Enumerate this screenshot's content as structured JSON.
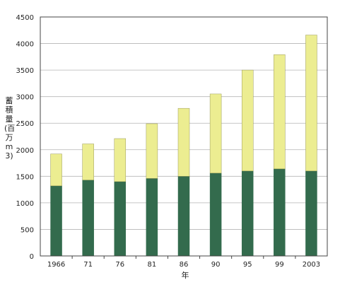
{
  "chart_data": {
    "type": "bar",
    "stacked": true,
    "categories": [
      "1966",
      "71",
      "76",
      "81",
      "86",
      "90",
      "95",
      "99",
      "2003"
    ],
    "series": [
      {
        "values": [
          1320,
          1430,
          1400,
          1460,
          1500,
          1560,
          1600,
          1640,
          1600
        ],
        "color": "#336b4d"
      },
      {
        "values": [
          600,
          680,
          810,
          1030,
          1280,
          1490,
          1900,
          2150,
          2560
        ],
        "color": "#eced91"
      }
    ],
    "totals": [
      1920,
      2110,
      2210,
      2490,
      2780,
      3050,
      3500,
      3790,
      4160
    ],
    "xlabel": "年",
    "ylabel": "蓄積量(百万m3)",
    "ylim": [
      0,
      4500
    ],
    "yticks": [
      0,
      500,
      1000,
      1500,
      2000,
      2500,
      3000,
      3500,
      4000,
      4500
    ],
    "grid": true,
    "colors": {
      "grid": "#b5b5b5",
      "axis": "#444444",
      "bar_edge": "#9a9a5a"
    }
  }
}
